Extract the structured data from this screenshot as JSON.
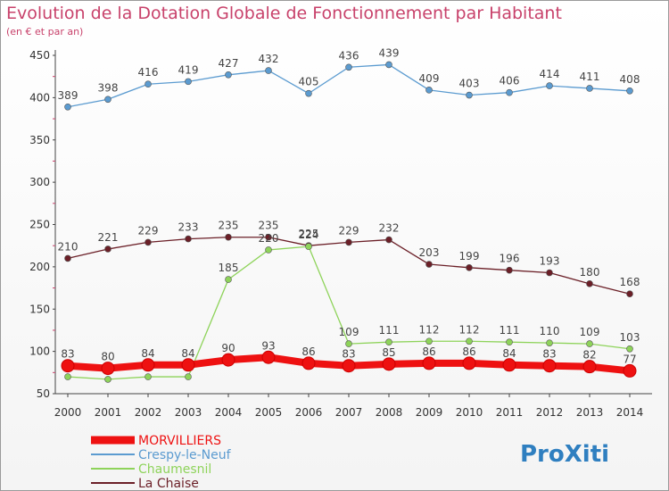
{
  "chart_data": {
    "type": "line",
    "title": "Evolution de la Dotation Globale de Fonctionnement par Habitant",
    "subtitle": "(en € et par an)",
    "xlabel": "",
    "ylabel": "",
    "ylim": [
      50,
      450
    ],
    "yticks": [
      50,
      100,
      150,
      200,
      250,
      300,
      350,
      400,
      450
    ],
    "x": [
      "2000",
      "2001",
      "2002",
      "2003",
      "2004",
      "2005",
      "2006",
      "2007",
      "2008",
      "2009",
      "2010",
      "2011",
      "2012",
      "2013",
      "2014"
    ],
    "grid": false,
    "legend_position": "bottom-left",
    "series": [
      {
        "name": "Crespy-le-Neuf",
        "color": "#5b9bd0",
        "values": [
          389,
          398,
          416,
          419,
          427,
          432,
          405,
          436,
          439,
          409,
          403,
          406,
          414,
          411,
          408
        ]
      },
      {
        "name": "La Chaise",
        "color": "#6b1f27",
        "values": [
          210,
          221,
          229,
          233,
          235,
          235,
          225,
          229,
          232,
          203,
          199,
          196,
          193,
          180,
          168
        ]
      },
      {
        "name": "Chaumesnil",
        "color": "#8ed35a",
        "values": [
          70,
          67,
          70,
          70,
          185,
          220,
          224,
          109,
          111,
          112,
          112,
          111,
          110,
          109,
          103
        ]
      },
      {
        "name": "MORVILLIERS",
        "color": "#ee1111",
        "values": [
          83,
          80,
          84,
          84,
          90,
          93,
          86,
          83,
          85,
          86,
          86,
          84,
          83,
          82,
          77
        ]
      }
    ]
  },
  "brand": {
    "logo_text": "ProXiti"
  }
}
